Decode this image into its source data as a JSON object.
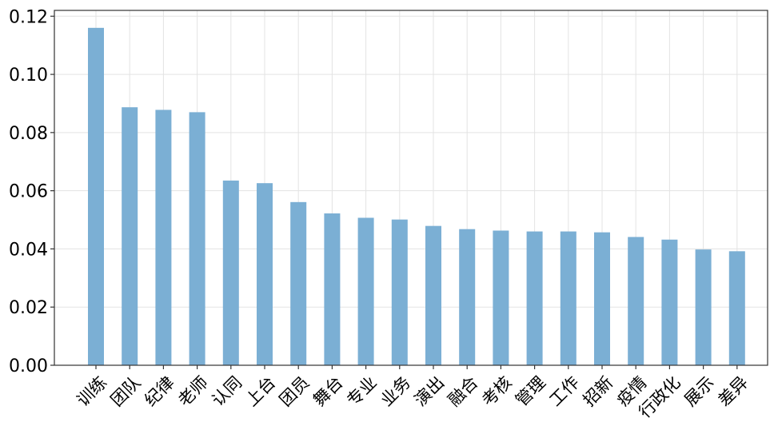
{
  "chart_data": {
    "type": "bar",
    "title": "",
    "xlabel": "",
    "ylabel": "",
    "categories": [
      "训练",
      "团队",
      "纪律",
      "老师",
      "认同",
      "上台",
      "团员",
      "舞台",
      "专业",
      "业务",
      "演出",
      "融合",
      "考核",
      "管理",
      "工作",
      "招新",
      "疫情",
      "行政化",
      "展示",
      "差异"
    ],
    "values": [
      0.116,
      0.0887,
      0.0878,
      0.087,
      0.0635,
      0.0626,
      0.0561,
      0.0522,
      0.0507,
      0.0501,
      0.0479,
      0.0468,
      0.0463,
      0.046,
      0.046,
      0.0457,
      0.0441,
      0.0432,
      0.0398,
      0.0392
    ],
    "ylim": [
      0,
      0.122
    ],
    "yticks": [
      "0.00",
      "0.02",
      "0.04",
      "0.06",
      "0.08",
      "0.10",
      "0.12"
    ],
    "grid": true,
    "bar_color": "#7bafd4"
  }
}
